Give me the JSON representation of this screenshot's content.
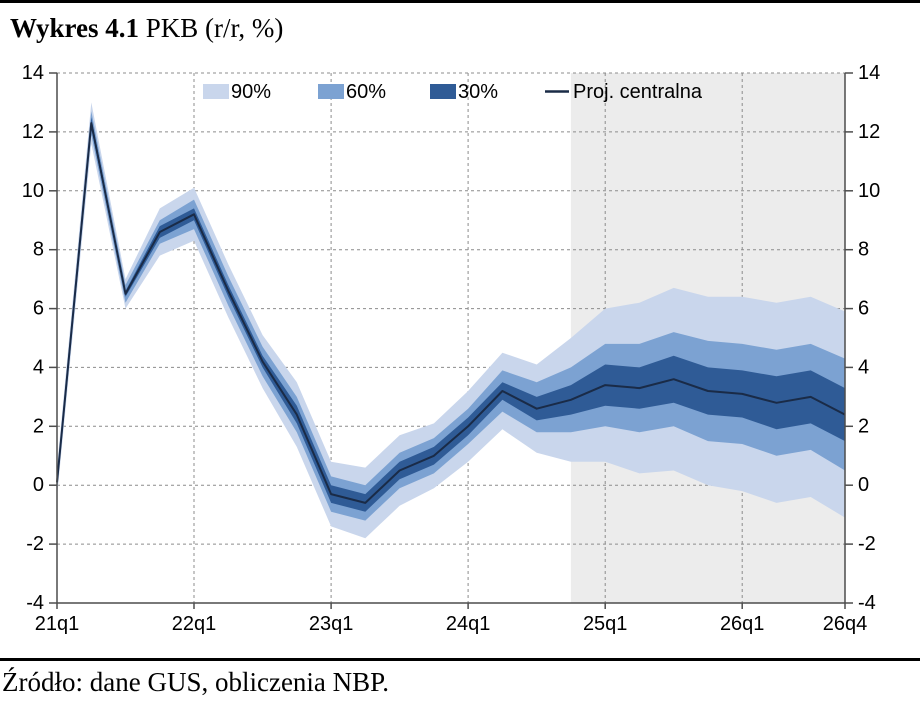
{
  "page": {
    "title_bold": "Wykres 4.1",
    "title_rest": " PKB (r/r, %)",
    "source_text": "Źródło: dane GUS, obliczenia NBP."
  },
  "chart_data": {
    "type": "area",
    "subtype": "fan-chart-with-central-projection",
    "title": "PKB (r/r, %)",
    "xlabel": "",
    "ylabel": "",
    "grid": true,
    "legend_position": "top",
    "ylim": [
      -4,
      14
    ],
    "y_ticks": [
      14,
      12,
      10,
      8,
      6,
      4,
      2,
      0,
      -2,
      -4
    ],
    "x": [
      "21q1",
      "21q2",
      "21q3",
      "21q4",
      "22q1",
      "22q2",
      "22q3",
      "22q4",
      "23q1",
      "23q2",
      "23q3",
      "23q4",
      "24q1",
      "24q2",
      "24q3",
      "24q4",
      "25q1",
      "25q2",
      "25q3",
      "25q4",
      "26q1",
      "26q2",
      "26q3",
      "26q4"
    ],
    "x_axis_ticks": [
      "21q1",
      "22q1",
      "23q1",
      "24q1",
      "25q1",
      "26q1",
      "26q4"
    ],
    "projection": {
      "start": "24q4",
      "shade_color": "#ececec"
    },
    "colors": {
      "grid": "#8c8c8c",
      "axis": "#4d4d4d",
      "text": "#000000"
    },
    "legend": [
      {
        "label": "90%",
        "type": "swatch",
        "color": "#c9d6ec"
      },
      {
        "label": "60%",
        "type": "swatch",
        "color": "#7ca2d2"
      },
      {
        "label": "30%",
        "type": "swatch",
        "color": "#2f5b96"
      },
      {
        "label": "Proj. centralna",
        "type": "line",
        "color": "#1a2b47"
      }
    ],
    "bands": [
      {
        "name": "90%",
        "color": "#c9d6ec",
        "hi": [
          0.6,
          13.0,
          7.0,
          9.4,
          10.1,
          7.5,
          5.1,
          3.5,
          0.8,
          0.6,
          1.7,
          2.1,
          3.2,
          4.5,
          4.1,
          5.0,
          6.0,
          6.2,
          6.7,
          6.4,
          6.4,
          6.2,
          6.4,
          5.9
        ],
        "lo": [
          -0.4,
          11.6,
          6.0,
          7.8,
          8.3,
          5.7,
          3.3,
          1.3,
          -1.4,
          -1.8,
          -0.7,
          -0.1,
          0.8,
          1.9,
          1.1,
          0.8,
          0.8,
          0.4,
          0.5,
          0.0,
          -0.2,
          -0.6,
          -0.4,
          -1.1
        ]
      },
      {
        "name": "60%",
        "color": "#7ca2d2",
        "hi": [
          0.4,
          12.7,
          6.8,
          9.0,
          9.7,
          7.1,
          4.7,
          3.0,
          0.3,
          0.0,
          1.1,
          1.6,
          2.6,
          3.9,
          3.5,
          4.0,
          4.8,
          4.8,
          5.2,
          4.9,
          4.8,
          4.6,
          4.8,
          4.3
        ],
        "lo": [
          -0.2,
          11.9,
          6.2,
          8.2,
          8.7,
          6.1,
          3.7,
          1.8,
          -0.9,
          -1.2,
          -0.1,
          0.4,
          1.4,
          2.5,
          1.8,
          1.8,
          2.0,
          1.8,
          2.0,
          1.5,
          1.4,
          1.0,
          1.2,
          0.5
        ]
      },
      {
        "name": "30%",
        "color": "#2f5b96",
        "hi": [
          0.2,
          12.5,
          6.6,
          8.8,
          9.4,
          6.8,
          4.4,
          2.7,
          0.0,
          -0.3,
          0.8,
          1.3,
          2.3,
          3.5,
          3.0,
          3.4,
          4.1,
          4.0,
          4.4,
          4.0,
          3.9,
          3.7,
          3.9,
          3.3
        ],
        "lo": [
          0.0,
          12.1,
          6.4,
          8.4,
          9.0,
          6.4,
          4.0,
          2.1,
          -0.6,
          -0.9,
          0.2,
          0.7,
          1.7,
          2.9,
          2.2,
          2.4,
          2.7,
          2.6,
          2.8,
          2.4,
          2.3,
          1.9,
          2.1,
          1.5
        ]
      }
    ],
    "central": {
      "name": "Proj. centralna",
      "color": "#1a2b47",
      "values": [
        0.1,
        12.3,
        6.5,
        8.6,
        9.2,
        6.6,
        4.2,
        2.4,
        -0.3,
        -0.6,
        0.5,
        1.0,
        2.0,
        3.2,
        2.6,
        2.9,
        3.4,
        3.3,
        3.6,
        3.2,
        3.1,
        2.8,
        3.0,
        2.4
      ]
    }
  }
}
